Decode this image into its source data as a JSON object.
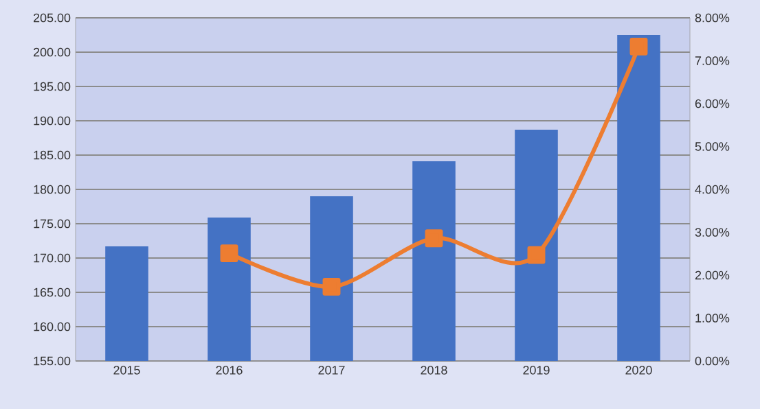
{
  "chart_data": {
    "type": "bar",
    "categories": [
      "2015",
      "2016",
      "2017",
      "2018",
      "2019",
      "2020"
    ],
    "series": [
      {
        "color": "#4472c4",
        "values": [
          171.7,
          175.9,
          179.0,
          184.1,
          188.7,
          202.5
        ]
      },
      {
        "type": "line",
        "axis": "y2",
        "color": "#ed7d31",
        "marker": "square",
        "line_style": "solid",
        "values": [
          null,
          2.51,
          1.73,
          2.86,
          2.47,
          7.33
        ]
      }
    ],
    "ylim": [
      155,
      205
    ],
    "yticks": [
      {
        "value": 155,
        "label": "155.00"
      },
      {
        "value": 160,
        "label": "160.00"
      },
      {
        "value": 165,
        "label": "165.00"
      },
      {
        "value": 170,
        "label": "170.00"
      },
      {
        "value": 175,
        "label": "175.00"
      },
      {
        "value": 180,
        "label": "180.00"
      },
      {
        "value": 185,
        "label": "185.00"
      },
      {
        "value": 190,
        "label": "190.00"
      },
      {
        "value": 195,
        "label": "195.00"
      },
      {
        "value": 200,
        "label": "200.00"
      },
      {
        "value": 205,
        "label": "205.00"
      }
    ],
    "y2lim": [
      0,
      8
    ],
    "y2ticks": [
      {
        "value": 0,
        "label": "0.00%"
      },
      {
        "value": 1,
        "label": "1.00%"
      },
      {
        "value": 2,
        "label": "2.00%"
      },
      {
        "value": 3,
        "label": "3.00%"
      },
      {
        "value": 4,
        "label": "4.00%"
      },
      {
        "value": 5,
        "label": "5.00%"
      },
      {
        "value": 6,
        "label": "6.00%"
      },
      {
        "value": 7,
        "label": "7.00%"
      },
      {
        "value": 8,
        "label": "8.00%"
      }
    ],
    "grid": "y"
  }
}
